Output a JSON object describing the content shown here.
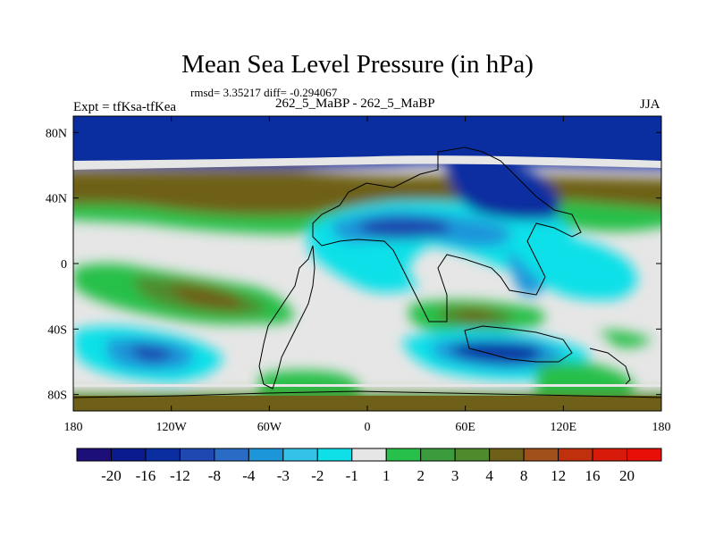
{
  "chart_data": {
    "type": "heatmap",
    "title": "Mean Sea Level Pressure (in hPa)",
    "stats_line": "rmsd= 3.35217 diff= -0.294067",
    "left_label": "Expt = tfKsa-tfKea",
    "center_label": "262_5_MaBP - 262_5_MaBP",
    "right_label": "JJA",
    "xlabel": "",
    "ylabel": "",
    "xlim": [
      -180,
      180
    ],
    "ylim": [
      -90,
      90
    ],
    "x_ticks": [
      {
        "value": -180,
        "label": "180"
      },
      {
        "value": -120,
        "label": "120W"
      },
      {
        "value": -60,
        "label": "60W"
      },
      {
        "value": 0,
        "label": "0"
      },
      {
        "value": 60,
        "label": "60E"
      },
      {
        "value": 120,
        "label": "120E"
      },
      {
        "value": 180,
        "label": "180"
      }
    ],
    "y_ticks": [
      {
        "value": 80,
        "label": "80N"
      },
      {
        "value": 40,
        "label": "40N"
      },
      {
        "value": 0,
        "label": "0"
      },
      {
        "value": -40,
        "label": "40S"
      },
      {
        "value": -80,
        "label": "80S"
      }
    ],
    "colorbar": {
      "levels": [
        "-20",
        "-16",
        "-12",
        "-8",
        "-4",
        "-3",
        "-2",
        "-1",
        "1",
        "2",
        "3",
        "4",
        "8",
        "12",
        "16",
        "20"
      ],
      "colors": [
        "#1c0f7a",
        "#0a1a8f",
        "#0a2ea0",
        "#1f48b0",
        "#2a6cc5",
        "#1c96d9",
        "#35c2e8",
        "#0fe0e8",
        "#e6e6e6",
        "#27c04a",
        "#3a9c3c",
        "#4f8a2d",
        "#6e6018",
        "#a05018",
        "#c0300c",
        "#d81a0a",
        "#e80f08"
      ]
    },
    "regions": [
      {
        "name": "arctic-negative",
        "lon": [
          -180,
          180
        ],
        "lat": [
          62,
          90
        ],
        "value": -12
      },
      {
        "name": "nh-midlat-positive",
        "lon": [
          -180,
          10
        ],
        "lat": [
          25,
          58
        ],
        "value": 8
      },
      {
        "name": "asia-negative",
        "lon": [
          20,
          130
        ],
        "lat": [
          15,
          55
        ],
        "value": -8
      },
      {
        "name": "pacific-sh-positive",
        "lon": [
          -170,
          -40
        ],
        "lat": [
          -40,
          -5
        ],
        "value": 4
      },
      {
        "name": "south-atlantic-positive",
        "lon": [
          30,
          110
        ],
        "lat": [
          -45,
          -25
        ],
        "value": 4
      },
      {
        "name": "south-pacific-negative",
        "lon": [
          -175,
          -115
        ],
        "lat": [
          -70,
          -45
        ],
        "value": -8
      },
      {
        "name": "indian-ocean-negative",
        "lon": [
          50,
          120
        ],
        "lat": [
          -70,
          -45
        ],
        "value": -8
      },
      {
        "name": "antarctic-positive",
        "lon": [
          -180,
          180
        ],
        "lat": [
          -90,
          -75
        ],
        "value": 8
      }
    ]
  }
}
